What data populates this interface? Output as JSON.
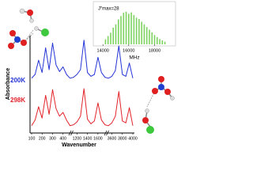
{
  "chart_data": [
    {
      "type": "line",
      "ylabel": "Absorbance",
      "xlabel": "Wavenumber",
      "categories": [
        "100",
        null,
        null,
        "200",
        null,
        null,
        "300",
        null,
        null,
        "400",
        null,
        null,
        null,
        "1200",
        null,
        null,
        "1400",
        null,
        null,
        "1600",
        null,
        null,
        null,
        "3600",
        null,
        null,
        "3800",
        null,
        null,
        "4000"
      ],
      "ylim": [
        0,
        10
      ],
      "series": [
        {
          "name": "200K",
          "color": "#2433d6",
          "values": [
            5.6,
            6.0,
            7.5,
            6.2,
            8.8,
            6.5,
            9.3,
            7.0,
            6.3,
            6.8,
            6.0,
            5.6,
            5.7,
            6.0,
            6.5,
            9.6,
            6.2,
            5.8,
            6.0,
            7.8,
            6.2,
            5.7,
            5.6,
            5.8,
            6.4,
            9.0,
            6.0,
            5.8,
            7.2,
            5.6
          ]
        },
        {
          "name": "298K",
          "color": "#e3232b",
          "values": [
            0.6,
            1.2,
            2.6,
            1.4,
            3.8,
            1.8,
            4.4,
            2.4,
            1.6,
            2.0,
            1.2,
            0.6,
            0.7,
            1.0,
            1.6,
            4.5,
            1.3,
            0.8,
            1.1,
            3.0,
            1.2,
            0.7,
            0.6,
            0.9,
            1.6,
            4.2,
            1.1,
            0.9,
            2.5,
            0.6
          ]
        }
      ]
    },
    {
      "type": "stick",
      "annotation": "J″max=28",
      "xlabel": "MHz",
      "color": "#7dd35f",
      "x": [
        14200,
        14400,
        14600,
        14800,
        15000,
        15200,
        15400,
        15600,
        15800,
        16000,
        16200,
        16400,
        16600,
        16800,
        17000,
        17200,
        17400,
        17600,
        17800,
        18000,
        18200,
        18400,
        18600,
        18800
      ],
      "values": [
        1.5,
        2.5,
        3.5,
        5,
        6,
        7.5,
        8.5,
        9.5,
        9.8,
        9.2,
        9.6,
        8.8,
        8.0,
        7.6,
        6.8,
        6.0,
        5.2,
        4.4,
        3.6,
        2.8,
        2.2,
        1.6,
        1.2,
        0.8
      ],
      "xlim": [
        13500,
        19500
      ],
      "xticks": [
        14000,
        16000,
        18000
      ],
      "ylim": [
        0,
        10
      ]
    }
  ]
}
